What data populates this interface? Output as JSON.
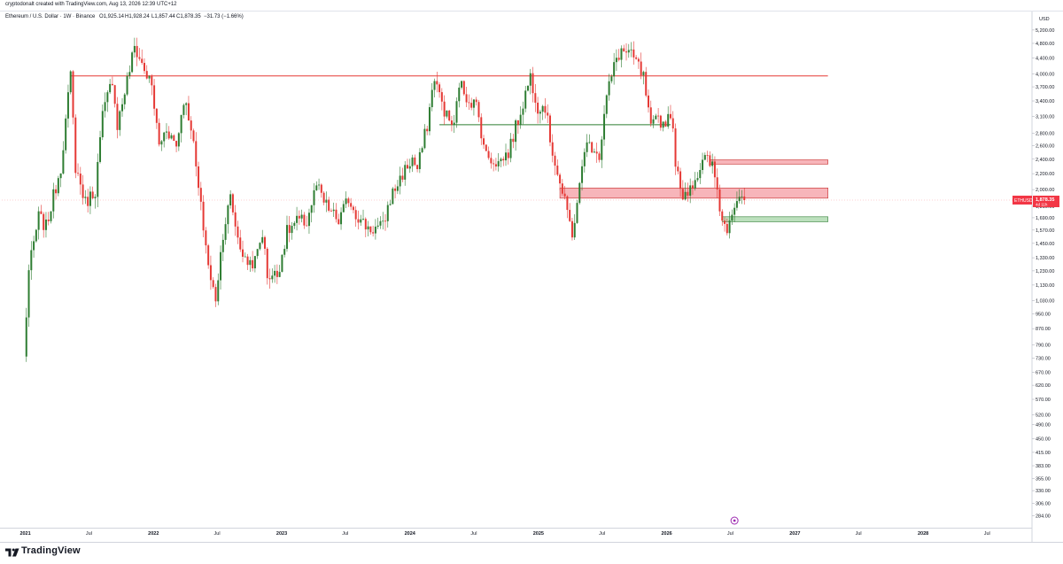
{
  "header": {
    "attribution": "cryptodonalt created with TradingView.com, Aug 13, 2026 12:39 UTC+12"
  },
  "info": {
    "symbol": "Ethereum / U.S. Dollar · 1W · Binance",
    "open": "O1,925.14",
    "high": "H1,928.24",
    "low": "L1,857.44",
    "close": "C1,878.35",
    "change": "−31.73 (−1.66%)"
  },
  "price_scale": {
    "currency": "USD",
    "tag_symbol": "ETHUSD",
    "tag_price": "1,878.35",
    "tag_time": "4d 11h"
  },
  "footer": {
    "brand": "TradingView"
  },
  "colors": {
    "up": "#2e7d32",
    "down": "#e53935",
    "resistance_line": "#e53935",
    "support_line": "#2e7d32",
    "supply_zone_fill": "#f5a3a9",
    "demand_zone_fill": "#a5d6a7",
    "price_tag": "#f23645"
  },
  "chart_data": {
    "type": "candlestick",
    "symbol": "ETHUSD",
    "timeframe": "1W",
    "y_scale": "log",
    "y_ticks": [
      5200,
      4800,
      4400,
      4000,
      3700,
      3400,
      3100,
      2800,
      2600,
      2400,
      2200,
      2000,
      1810,
      1690,
      1570,
      1450,
      1330,
      1230,
      1130,
      1030,
      950,
      870,
      790,
      730,
      670,
      620,
      570,
      520,
      490,
      450,
      415,
      383,
      355,
      330,
      306,
      284
    ],
    "x_ticks": [
      {
        "label": "2021",
        "date": "2021-01-01"
      },
      {
        "label": "Jul",
        "date": "2021-07-01"
      },
      {
        "label": "2022",
        "date": "2022-01-01"
      },
      {
        "label": "Jul",
        "date": "2022-07-01"
      },
      {
        "label": "2023",
        "date": "2023-01-01"
      },
      {
        "label": "Jul",
        "date": "2023-07-01"
      },
      {
        "label": "2024",
        "date": "2024-01-01"
      },
      {
        "label": "Jul",
        "date": "2024-07-01"
      },
      {
        "label": "2025",
        "date": "2025-01-01"
      },
      {
        "label": "Jul",
        "date": "2025-07-01"
      },
      {
        "label": "2026",
        "date": "2026-01-01"
      },
      {
        "label": "Jul",
        "date": "2026-07-01"
      },
      {
        "label": "2027",
        "date": "2027-01-01"
      },
      {
        "label": "Jul",
        "date": "2027-07-01"
      },
      {
        "label": "2028",
        "date": "2028-01-01"
      },
      {
        "label": "Jul",
        "date": "2028-07-01"
      }
    ],
    "x_range": [
      "2020-10-26",
      "2028-11-06"
    ],
    "y_range": [
      270,
      5450
    ],
    "last_price": 1878.35,
    "price_path": [
      [
        "2020-12-28",
        730
      ],
      [
        "2021-01-11",
        1230
      ],
      [
        "2021-02-08",
        1700
      ],
      [
        "2021-03-01",
        1600
      ],
      [
        "2021-04-12",
        2300
      ],
      [
        "2021-05-10",
        3950
      ],
      [
        "2021-05-24",
        2300
      ],
      [
        "2021-06-21",
        1850
      ],
      [
        "2021-07-19",
        2000
      ],
      [
        "2021-08-09",
        3100
      ],
      [
        "2021-09-06",
        3900
      ],
      [
        "2021-09-20",
        2950
      ],
      [
        "2021-10-11",
        3600
      ],
      [
        "2021-11-08",
        4700
      ],
      [
        "2021-12-06",
        4100
      ],
      [
        "2021-12-27",
        3700
      ],
      [
        "2022-01-17",
        2600
      ],
      [
        "2022-02-07",
        2900
      ],
      [
        "2022-03-07",
        2600
      ],
      [
        "2022-03-28",
        3450
      ],
      [
        "2022-04-18",
        2950
      ],
      [
        "2022-05-09",
        2000
      ],
      [
        "2022-06-13",
        1150
      ],
      [
        "2022-06-27",
        1050
      ],
      [
        "2022-07-18",
        1550
      ],
      [
        "2022-08-08",
        1900
      ],
      [
        "2022-08-29",
        1500
      ],
      [
        "2022-09-19",
        1300
      ],
      [
        "2022-10-17",
        1300
      ],
      [
        "2022-11-07",
        1550
      ],
      [
        "2022-11-21",
        1200
      ],
      [
        "2022-12-19",
        1200
      ],
      [
        "2023-01-16",
        1550
      ],
      [
        "2023-02-13",
        1650
      ],
      [
        "2023-03-13",
        1650
      ],
      [
        "2023-04-10",
        2050
      ],
      [
        "2023-05-01",
        1850
      ],
      [
        "2023-06-12",
        1650
      ],
      [
        "2023-07-10",
        1900
      ],
      [
        "2023-08-14",
        1650
      ],
      [
        "2023-09-11",
        1580
      ],
      [
        "2023-10-16",
        1600
      ],
      [
        "2023-11-06",
        1900
      ],
      [
        "2023-12-11",
        2200
      ],
      [
        "2024-01-08",
        2400
      ],
      [
        "2024-01-22",
        2250
      ],
      [
        "2024-02-19",
        2950
      ],
      [
        "2024-03-11",
        3950
      ],
      [
        "2024-03-25",
        3500
      ],
      [
        "2024-04-15",
        3100
      ],
      [
        "2024-05-06",
        2900
      ],
      [
        "2024-05-20",
        3800
      ],
      [
        "2024-06-10",
        3500
      ],
      [
        "2024-07-08",
        3300
      ],
      [
        "2024-08-05",
        2450
      ],
      [
        "2024-09-09",
        2350
      ],
      [
        "2024-10-07",
        2500
      ],
      [
        "2024-11-11",
        3200
      ],
      [
        "2024-12-09",
        3950
      ],
      [
        "2024-12-30",
        3300
      ],
      [
        "2025-01-20",
        3300
      ],
      [
        "2025-02-03",
        2700
      ],
      [
        "2025-03-10",
        1950
      ],
      [
        "2025-04-07",
        1550
      ],
      [
        "2025-04-21",
        1800
      ],
      [
        "2025-05-12",
        2600
      ],
      [
        "2025-06-09",
        2600
      ],
      [
        "2025-06-23",
        2450
      ],
      [
        "2025-07-14",
        3500
      ],
      [
        "2025-08-11",
        4400
      ],
      [
        "2025-08-25",
        4600
      ],
      [
        "2025-09-15",
        4500
      ],
      [
        "2025-10-06",
        4300
      ],
      [
        "2025-10-27",
        3900
      ],
      [
        "2025-11-17",
        2850
      ],
      [
        "2025-12-08",
        3100
      ],
      [
        "2025-12-22",
        2950
      ],
      [
        "2026-01-12",
        3200
      ],
      [
        "2026-01-26",
        2400
      ],
      [
        "2026-02-09",
        1950
      ],
      [
        "2026-03-02",
        2000
      ],
      [
        "2026-03-30",
        2200
      ],
      [
        "2026-04-20",
        2400
      ],
      [
        "2026-05-11",
        2300
      ],
      [
        "2026-05-25",
        2000
      ],
      [
        "2026-06-08",
        1650
      ],
      [
        "2026-06-22",
        1600
      ],
      [
        "2026-07-06",
        1800
      ],
      [
        "2026-07-27",
        1950
      ],
      [
        "2026-08-10",
        1878.35
      ]
    ],
    "horizontal_levels": [
      {
        "kind": "resistance",
        "price": 3950,
        "from": "2021-05-10",
        "to": "2027-04-05",
        "color": "#e53935"
      },
      {
        "kind": "support",
        "price": 2950,
        "from": "2024-03-25",
        "to": "2026-01-12",
        "color": "#2e7d32"
      }
    ],
    "zones": [
      {
        "kind": "supply",
        "low": 1900,
        "high": 2020,
        "from": "2025-03-03",
        "to": "2027-04-05"
      },
      {
        "kind": "supply",
        "low": 2330,
        "high": 2390,
        "from": "2026-05-04",
        "to": "2027-04-05"
      },
      {
        "kind": "demand",
        "low": 1650,
        "high": 1700,
        "from": "2026-06-08",
        "to": "2027-04-05"
      }
    ]
  }
}
